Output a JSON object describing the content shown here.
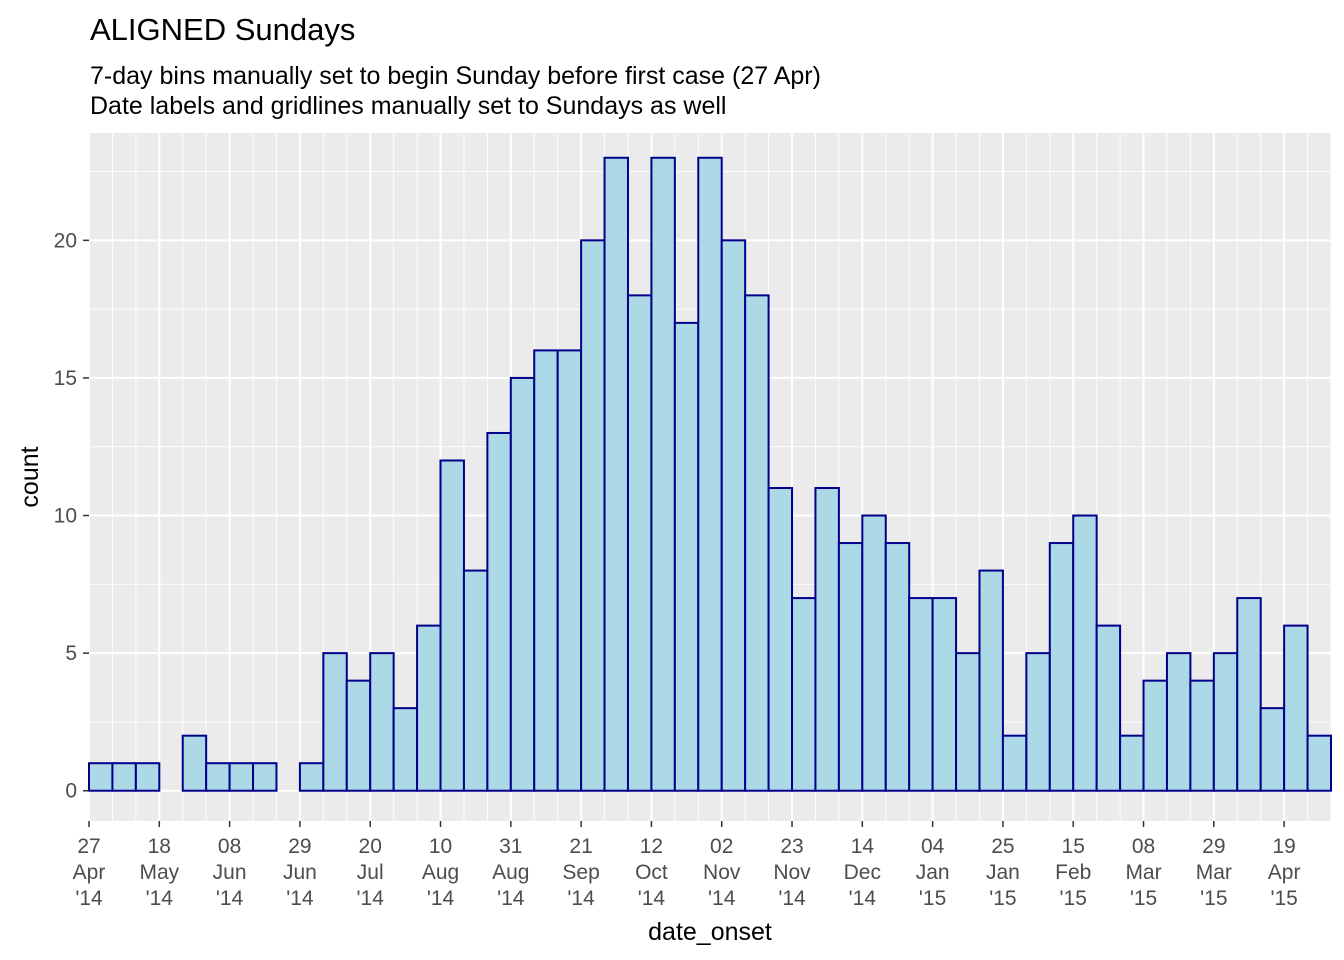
{
  "chart_data": {
    "type": "bar",
    "title": "ALIGNED Sundays",
    "subtitle_lines": [
      "7-day bins manually set to begin Sunday before first case (27 Apr)",
      "Date labels and gridlines manually set to Sundays as well"
    ],
    "xlabel": "date_onset",
    "ylabel": "count",
    "bin_width_days": 7,
    "x_start": "2014-04-27",
    "x_end": "2015-05-03",
    "ylim": [
      -1.1,
      23.9
    ],
    "yticks": [
      0,
      5,
      10,
      15,
      20
    ],
    "bins": [
      {
        "start": "2014-04-27",
        "value": 1
      },
      {
        "start": "2014-05-04",
        "value": 1
      },
      {
        "start": "2014-05-11",
        "value": 1
      },
      {
        "start": "2014-05-18",
        "value": 0
      },
      {
        "start": "2014-05-25",
        "value": 2
      },
      {
        "start": "2014-06-01",
        "value": 1
      },
      {
        "start": "2014-06-08",
        "value": 1
      },
      {
        "start": "2014-06-15",
        "value": 1
      },
      {
        "start": "2014-06-22",
        "value": 0
      },
      {
        "start": "2014-06-29",
        "value": 1
      },
      {
        "start": "2014-07-06",
        "value": 5
      },
      {
        "start": "2014-07-13",
        "value": 4
      },
      {
        "start": "2014-07-20",
        "value": 5
      },
      {
        "start": "2014-07-27",
        "value": 3
      },
      {
        "start": "2014-08-03",
        "value": 6
      },
      {
        "start": "2014-08-10",
        "value": 12
      },
      {
        "start": "2014-08-17",
        "value": 8
      },
      {
        "start": "2014-08-24",
        "value": 13
      },
      {
        "start": "2014-08-31",
        "value": 15
      },
      {
        "start": "2014-09-07",
        "value": 16
      },
      {
        "start": "2014-09-14",
        "value": 16
      },
      {
        "start": "2014-09-21",
        "value": 20
      },
      {
        "start": "2014-09-28",
        "value": 23
      },
      {
        "start": "2014-10-05",
        "value": 18
      },
      {
        "start": "2014-10-12",
        "value": 23
      },
      {
        "start": "2014-10-19",
        "value": 17
      },
      {
        "start": "2014-10-26",
        "value": 23
      },
      {
        "start": "2014-11-02",
        "value": 20
      },
      {
        "start": "2014-11-09",
        "value": 18
      },
      {
        "start": "2014-11-16",
        "value": 11
      },
      {
        "start": "2014-11-23",
        "value": 7
      },
      {
        "start": "2014-11-30",
        "value": 11
      },
      {
        "start": "2014-12-07",
        "value": 9
      },
      {
        "start": "2014-12-14",
        "value": 10
      },
      {
        "start": "2014-12-21",
        "value": 9
      },
      {
        "start": "2014-12-28",
        "value": 7
      },
      {
        "start": "2015-01-04",
        "value": 7
      },
      {
        "start": "2015-01-11",
        "value": 5
      },
      {
        "start": "2015-01-18",
        "value": 8
      },
      {
        "start": "2015-01-25",
        "value": 2
      },
      {
        "start": "2015-02-01",
        "value": 5
      },
      {
        "start": "2015-02-08",
        "value": 9
      },
      {
        "start": "2015-02-15",
        "value": 10
      },
      {
        "start": "2015-02-22",
        "value": 6
      },
      {
        "start": "2015-03-01",
        "value": 2
      },
      {
        "start": "2015-03-08",
        "value": 4
      },
      {
        "start": "2015-03-15",
        "value": 5
      },
      {
        "start": "2015-03-22",
        "value": 4
      },
      {
        "start": "2015-03-29",
        "value": 5
      },
      {
        "start": "2015-04-05",
        "value": 7
      },
      {
        "start": "2015-04-12",
        "value": 3
      },
      {
        "start": "2015-04-19",
        "value": 6
      },
      {
        "start": "2015-04-26",
        "value": 2
      }
    ],
    "xtick_labels": [
      {
        "date": "2014-04-27",
        "lines": [
          "27",
          "Apr",
          "'14"
        ]
      },
      {
        "date": "2014-05-18",
        "lines": [
          "18",
          "May",
          "'14"
        ]
      },
      {
        "date": "2014-06-08",
        "lines": [
          "08",
          "Jun",
          "'14"
        ]
      },
      {
        "date": "2014-06-29",
        "lines": [
          "29",
          "Jun",
          "'14"
        ]
      },
      {
        "date": "2014-07-20",
        "lines": [
          "20",
          "Jul",
          "'14"
        ]
      },
      {
        "date": "2014-08-10",
        "lines": [
          "10",
          "Aug",
          "'14"
        ]
      },
      {
        "date": "2014-08-31",
        "lines": [
          "31",
          "Aug",
          "'14"
        ]
      },
      {
        "date": "2014-09-21",
        "lines": [
          "21",
          "Sep",
          "'14"
        ]
      },
      {
        "date": "2014-10-12",
        "lines": [
          "12",
          "Oct",
          "'14"
        ]
      },
      {
        "date": "2014-11-02",
        "lines": [
          "02",
          "Nov",
          "'14"
        ]
      },
      {
        "date": "2014-11-23",
        "lines": [
          "23",
          "Nov",
          "'14"
        ]
      },
      {
        "date": "2014-12-14",
        "lines": [
          "14",
          "Dec",
          "'14"
        ]
      },
      {
        "date": "2015-01-04",
        "lines": [
          "04",
          "Jan",
          "'15"
        ]
      },
      {
        "date": "2015-01-25",
        "lines": [
          "25",
          "Jan",
          "'15"
        ]
      },
      {
        "date": "2015-02-15",
        "lines": [
          "15",
          "Feb",
          "'15"
        ]
      },
      {
        "date": "2015-03-08",
        "lines": [
          "08",
          "Mar",
          "'15"
        ]
      },
      {
        "date": "2015-03-29",
        "lines": [
          "29",
          "Mar",
          "'15"
        ]
      },
      {
        "date": "2015-04-19",
        "lines": [
          "19",
          "Apr",
          "'15"
        ]
      }
    ],
    "grid": true,
    "minor_gridlines": "weekly (Sundays)",
    "legend": "none",
    "colors": {
      "bar_fill": "#add8e6",
      "bar_outline": "#00008b",
      "panel_background": "#ebebeb",
      "gridline": "#ffffff"
    }
  }
}
